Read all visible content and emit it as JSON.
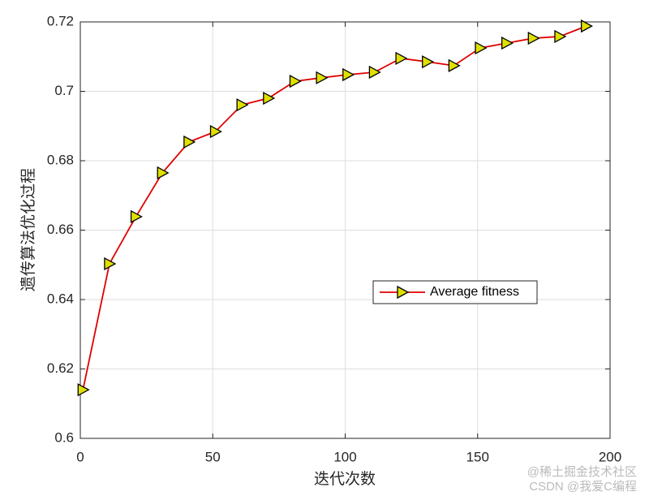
{
  "chart_data": {
    "type": "line",
    "x": [
      1,
      11,
      21,
      31,
      41,
      51,
      61,
      71,
      81,
      91,
      101,
      111,
      121,
      131,
      141,
      151,
      161,
      171,
      181,
      191
    ],
    "series": [
      {
        "name": "Average fitness",
        "color": "#e00000",
        "marker_color": "#e0e000",
        "values": [
          0.614,
          0.6503,
          0.6639,
          0.6765,
          0.6854,
          0.6884,
          0.6961,
          0.698,
          0.7029,
          0.7039,
          0.7048,
          0.7055,
          0.7095,
          0.7085,
          0.7074,
          0.7125,
          0.7139,
          0.7153,
          0.7158,
          0.7188
        ]
      }
    ],
    "xlabel": "迭代次数",
    "ylabel": "遗传算法优化过程",
    "xlim": [
      0,
      200
    ],
    "xticks": [
      0,
      50,
      100,
      150,
      200
    ],
    "ylim": [
      0.6,
      0.72
    ],
    "yticks": [
      0.6,
      0.62,
      0.64,
      0.66,
      0.68,
      0.7,
      0.72
    ],
    "grid": true,
    "legend": "right",
    "watermarks": [
      "@稀土掘金技术社区",
      "CSDN @我爱C编程"
    ]
  }
}
